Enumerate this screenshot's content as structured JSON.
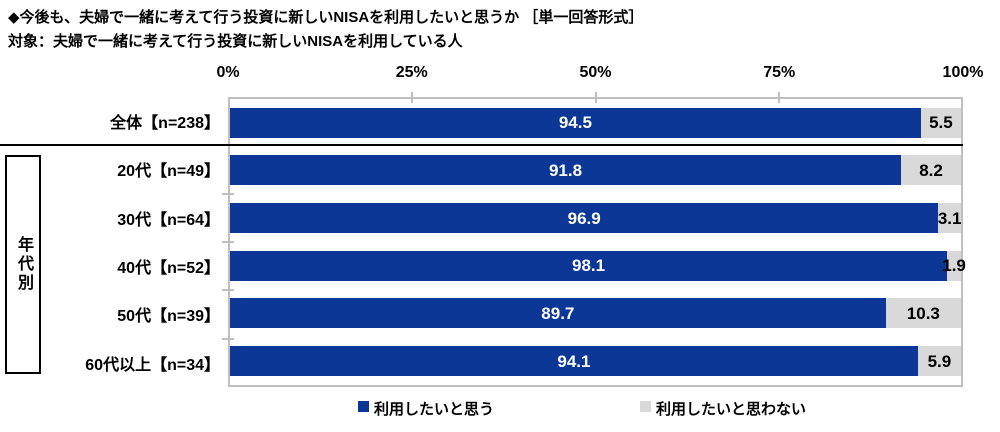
{
  "chart_data": {
    "type": "bar",
    "orientation": "horizontal-stacked",
    "title": "◆今後も、夫婦で一緒に考えて行う投資に新しいNISAを利用したいと思うか ［単一回答形式］",
    "subtitle": "対象：夫婦で一緒に考えて行う投資に新しいNISAを利用している人",
    "categories": [
      "全体【n=238】",
      "20代【n=49】",
      "30代【n=64】",
      "40代【n=52】",
      "50代【n=39】",
      "60代以上【n=34】"
    ],
    "series": [
      {
        "name": "利用したいと思う",
        "color": "#0c3796",
        "label_color": "#ffffff",
        "values": [
          94.5,
          91.8,
          96.9,
          98.1,
          89.7,
          94.1
        ]
      },
      {
        "name": "利用したいと思わない",
        "color": "#d9d9d9",
        "label_color": "#000000",
        "values": [
          5.5,
          8.2,
          3.1,
          1.9,
          10.3,
          5.9
        ]
      }
    ],
    "x_axis": {
      "ticks": [
        "0%",
        "25%",
        "50%",
        "75%",
        "100%"
      ],
      "range": [
        0,
        100
      ],
      "grid": false
    },
    "group_label": "年代別",
    "group_rows": [
      1,
      2,
      3,
      4,
      5
    ],
    "legend_position": "bottom",
    "colors": {
      "plot_border": "#bfbfbf",
      "separator": "#000000",
      "background": "#ffffff"
    }
  }
}
